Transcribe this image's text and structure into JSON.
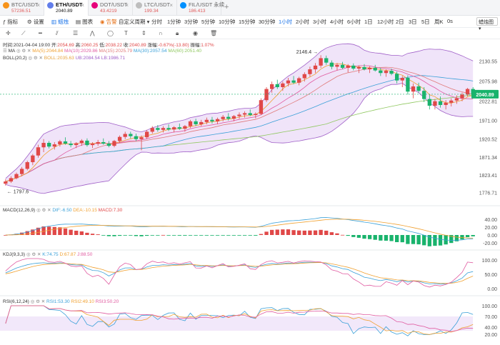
{
  "tabs": [
    {
      "name": "BTC/USDT",
      "price": "57236.51",
      "icon_color": "#f7931a",
      "active": false
    },
    {
      "name": "ETH/USDT",
      "price": "2040.89",
      "icon_color": "#627eea",
      "active": true
    },
    {
      "name": "DOT/USDT",
      "price": "43.4219",
      "icon_color": "#e6007a",
      "active": false
    },
    {
      "name": "LTC/USDT",
      "price": "199.34",
      "icon_color": "#bebebe",
      "active": false
    },
    {
      "name": "FIL/USDT 永续",
      "price": "186.413",
      "icon_color": "#0090ff",
      "active": false
    }
  ],
  "toolbar": {
    "indicator": "指标",
    "settings": "设置",
    "kline": "蜡烛",
    "compare": "图表",
    "alert": "告警",
    "custom_period": "自定义周期",
    "periods": [
      "分时",
      "1分钟",
      "3分钟",
      "5分钟",
      "10分钟",
      "15分钟",
      "30分钟",
      "1小时",
      "2小时",
      "3小时",
      "4小时",
      "6小时",
      "1日",
      "12小时",
      "2日",
      "3日",
      "5日",
      "周K",
      "0s"
    ],
    "active_period": "1小时",
    "right_select": "蜡烛图"
  },
  "info": {
    "time_label": "时间",
    "time": "2021-04-04 19:00",
    "open_label": "开",
    "open": "2054.69",
    "high_label": "高",
    "high": "2060.25",
    "low_label": "低",
    "low": "2038.22",
    "close_label": "收",
    "close": "2040.89",
    "change_label": "涨幅",
    "change": "-0.67%(-13.80)",
    "amp_label": "振幅",
    "amp": "1.07%"
  },
  "ma": {
    "label": "MA",
    "ma5": "MA(5):2044.84",
    "ma10": "MA(10):2029.86",
    "ma15": "MA(15):2025.79",
    "ma30": "MA(30):2057.54",
    "ma60": "MA(60):2051.40"
  },
  "boll": {
    "label": "BOLL(20,2)",
    "boll": "BOLL:2035.63",
    "ub": "UB:2084.54",
    "lb": "LB:1986.71"
  },
  "macd": {
    "label": "MACD(12,26,9)",
    "dif": "DIF:-6.50",
    "dea": "DEA:-10.15",
    "macd": "MACD:7.30",
    "ticks": [
      "40.00",
      "20.00",
      "0.00",
      "-20.00"
    ]
  },
  "kdj": {
    "label": "KDJ(9,3,3)",
    "k": "K:74.75",
    "d": "D:67.87",
    "j": "J:88.50",
    "ticks": [
      "100.00",
      "50.00",
      "0.00"
    ]
  },
  "rsi": {
    "label": "RSI(6,12,24)",
    "r1": "RSI1:53.30",
    "r2": "RSI2:49.10",
    "r3": "RSI3:50.20",
    "ticks": [
      "100.00",
      "70.00",
      "40.00",
      "20.00"
    ]
  },
  "price_axis": [
    "2130.55",
    "2075.98",
    "2022.81",
    "1971.00",
    "1920.52",
    "1871.34",
    "1823.41",
    "1776.71"
  ],
  "current_price": "2040.89",
  "annotations": {
    "high": "2146.4",
    "low": "1797.6"
  },
  "colors": {
    "up": "#e04848",
    "down": "#19b36c",
    "ma5": "#f0a030",
    "ma10": "#e05aa0",
    "ma15": "#e07a7a",
    "ma30": "#3aa0d8",
    "ma60": "#90c860",
    "boll_fill": "#e9d8f7",
    "boll_line": "#a060c8",
    "accent": "#1a73e8"
  },
  "chart_data": {
    "type": "candlestick",
    "symbol": "ETH/USDT",
    "interval": "1小时",
    "ylim": [
      1760,
      2160
    ],
    "candles": [
      [
        1800,
        1812,
        1795,
        1806
      ],
      [
        1806,
        1820,
        1802,
        1815
      ],
      [
        1815,
        1830,
        1812,
        1826
      ],
      [
        1826,
        1845,
        1820,
        1840
      ],
      [
        1840,
        1862,
        1836,
        1858
      ],
      [
        1858,
        1880,
        1850,
        1876
      ],
      [
        1876,
        1905,
        1870,
        1898
      ],
      [
        1898,
        1920,
        1885,
        1910
      ],
      [
        1910,
        1915,
        1895,
        1900
      ],
      [
        1900,
        1912,
        1892,
        1906
      ],
      [
        1906,
        1918,
        1900,
        1914
      ],
      [
        1914,
        1925,
        1905,
        1908
      ],
      [
        1908,
        1915,
        1898,
        1904
      ],
      [
        1904,
        1912,
        1896,
        1909
      ],
      [
        1909,
        1920,
        1902,
        1916
      ],
      [
        1916,
        1922,
        1900,
        1904
      ],
      [
        1904,
        1912,
        1896,
        1908
      ],
      [
        1908,
        1918,
        1902,
        1912
      ],
      [
        1912,
        1922,
        1905,
        1908
      ],
      [
        1908,
        1915,
        1898,
        1902
      ],
      [
        1902,
        1918,
        1898,
        1915
      ],
      [
        1915,
        1930,
        1910,
        1926
      ],
      [
        1926,
        1940,
        1920,
        1934
      ],
      [
        1934,
        1940,
        1922,
        1928
      ],
      [
        1928,
        1935,
        1915,
        1920
      ],
      [
        1920,
        1930,
        1890,
        1925
      ],
      [
        1925,
        1945,
        1920,
        1940
      ],
      [
        1940,
        1955,
        1935,
        1950
      ],
      [
        1950,
        1958,
        1940,
        1945
      ],
      [
        1945,
        1955,
        1938,
        1950
      ],
      [
        1950,
        1960,
        1942,
        1946
      ],
      [
        1946,
        1955,
        1938,
        1952
      ],
      [
        1952,
        1962,
        1945,
        1948
      ],
      [
        1948,
        1958,
        1940,
        1955
      ],
      [
        1955,
        1972,
        1950,
        1968
      ],
      [
        1968,
        1975,
        1955,
        1960
      ],
      [
        1960,
        1972,
        1955,
        1966
      ],
      [
        1966,
        1978,
        1960,
        1972
      ],
      [
        1972,
        1980,
        1962,
        1968
      ],
      [
        1968,
        1978,
        1960,
        1974
      ],
      [
        1974,
        1985,
        1968,
        1980
      ],
      [
        1980,
        1990,
        1970,
        1975
      ],
      [
        1975,
        1985,
        1968,
        1982
      ],
      [
        1982,
        1992,
        1975,
        1986
      ],
      [
        1986,
        1995,
        1978,
        1990
      ],
      [
        1990,
        2000,
        1982,
        1985
      ],
      [
        1985,
        1992,
        1976,
        1988
      ],
      [
        1988,
        2030,
        1985,
        2025
      ],
      [
        2025,
        2060,
        2020,
        2055
      ],
      [
        2055,
        2075,
        2045,
        2068
      ],
      [
        2068,
        2080,
        2055,
        2060
      ],
      [
        2060,
        2075,
        2050,
        2070
      ],
      [
        2070,
        2085,
        2062,
        2078
      ],
      [
        2078,
        2090,
        2068,
        2072
      ],
      [
        2072,
        2088,
        2065,
        2084
      ],
      [
        2084,
        2100,
        2075,
        2095
      ],
      [
        2095,
        2115,
        2088,
        2108
      ],
      [
        2108,
        2125,
        2098,
        2118
      ],
      [
        2118,
        2146,
        2112,
        2138
      ],
      [
        2138,
        2145,
        2120,
        2126
      ],
      [
        2126,
        2132,
        2108,
        2115
      ],
      [
        2115,
        2125,
        2105,
        2120
      ],
      [
        2120,
        2128,
        2108,
        2112
      ],
      [
        2112,
        2122,
        2100,
        2118
      ],
      [
        2118,
        2124,
        2105,
        2110
      ],
      [
        2110,
        2118,
        2098,
        2114
      ],
      [
        2114,
        2122,
        2105,
        2108
      ],
      [
        2108,
        2116,
        2098,
        2112
      ],
      [
        2112,
        2120,
        2102,
        2105
      ],
      [
        2105,
        2112,
        2090,
        2098
      ],
      [
        2098,
        2108,
        2088,
        2104
      ],
      [
        2104,
        2110,
        2092,
        2096
      ],
      [
        2096,
        2102,
        2070,
        2078
      ],
      [
        2078,
        2090,
        2060,
        2085
      ],
      [
        2085,
        2092,
        2040,
        2048
      ],
      [
        2048,
        2070,
        2030,
        2062
      ],
      [
        2062,
        2072,
        2045,
        2050
      ],
      [
        2050,
        2060,
        2020,
        2028
      ],
      [
        2028,
        2040,
        2000,
        2010
      ],
      [
        2010,
        2028,
        2000,
        2022
      ],
      [
        2022,
        2035,
        2005,
        2012
      ],
      [
        2012,
        2025,
        2000,
        2018
      ],
      [
        2018,
        2030,
        2008,
        2024
      ],
      [
        2024,
        2038,
        2015,
        2030
      ],
      [
        2030,
        2045,
        2022,
        2040
      ],
      [
        2040,
        2058,
        2035,
        2055
      ],
      [
        2055,
        2060,
        2038,
        2041
      ]
    ]
  }
}
